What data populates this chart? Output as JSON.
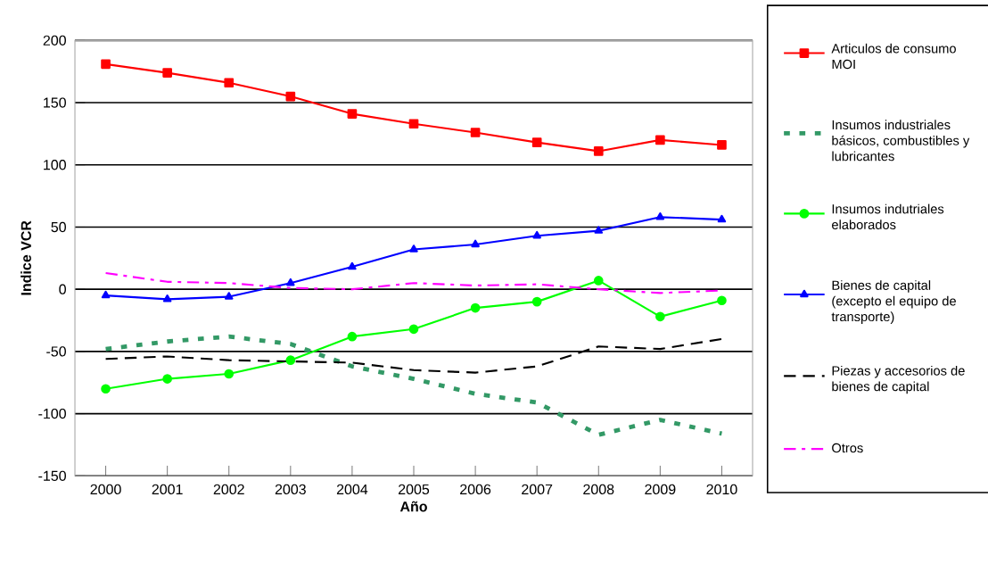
{
  "chart_data": {
    "type": "line",
    "xlabel": "Año",
    "ylabel": "Indice VCR",
    "categories": [
      "2000",
      "2001",
      "2002",
      "2003",
      "2004",
      "2005",
      "2006",
      "2007",
      "2008",
      "2009",
      "2010"
    ],
    "ylim": [
      -150,
      200
    ],
    "yticks": [
      -150,
      -100,
      -50,
      0,
      50,
      100,
      150,
      200
    ],
    "grid": "y",
    "legend": "right",
    "series": [
      {
        "name": "Articulos de consumo MOI",
        "color": "#ff0000",
        "marker": "square",
        "line_style": "solid",
        "values": [
          181,
          174,
          166,
          155,
          141,
          133,
          126,
          118,
          111,
          120,
          116
        ]
      },
      {
        "name": "Insumos industriales básicos, combustibles y lubricantes",
        "color": "#339966",
        "marker": "none",
        "line_style": "dotted",
        "values": [
          -48,
          -42,
          -38,
          -44,
          -62,
          -72,
          -84,
          -91,
          -117,
          -105,
          -116
        ]
      },
      {
        "name": "Insumos indutriales elaborados",
        "color": "#00ff00",
        "marker": "circle",
        "line_style": "solid",
        "values": [
          -80,
          -72,
          -68,
          -57,
          -38,
          -32,
          -15,
          -10,
          7,
          -22,
          -9
        ]
      },
      {
        "name": "Bienes de capital (excepto el equipo de transporte)",
        "color": "#0000ff",
        "marker": "triangle",
        "line_style": "solid",
        "values": [
          -5,
          -8,
          -6,
          5,
          18,
          32,
          36,
          43,
          47,
          58,
          56
        ]
      },
      {
        "name": "Piezas y accesorios de bienes de capital",
        "color": "#000000",
        "marker": "none",
        "line_style": "dashed",
        "values": [
          -56,
          -54,
          -57,
          -58,
          -59,
          -65,
          -67,
          -62,
          -46,
          -48,
          -40
        ]
      },
      {
        "name": "Otros",
        "color": "#ff00ff",
        "marker": "none",
        "line_style": "dashdot",
        "values": [
          13,
          6,
          5,
          1,
          0,
          5,
          3,
          4,
          0,
          -3,
          -1
        ]
      }
    ]
  }
}
